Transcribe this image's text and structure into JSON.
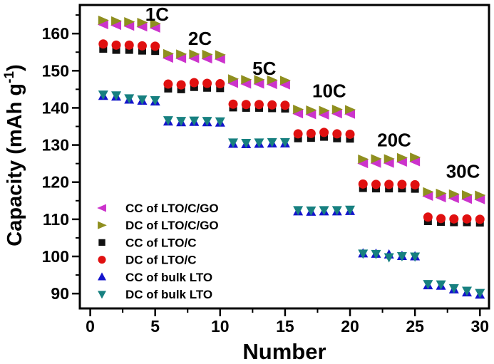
{
  "figure": {
    "background": "#ffffff",
    "axis_color": "#000000"
  },
  "chart_data": {
    "type": "scatter",
    "title": "",
    "xlabel": "Number",
    "ylabel_text": "Capacity (mAh g-1)",
    "ylabel_parts": {
      "prefix": "Capacity (mAh g",
      "superscript": "-1",
      "suffix": ")"
    },
    "xlim": [
      -0.8,
      30.7
    ],
    "ylim": [
      86,
      167.7
    ],
    "grid": false,
    "legend_position": "lower-left",
    "x_major_ticks": [
      0,
      5,
      10,
      15,
      20,
      25,
      30
    ],
    "x_minor_ticks": [
      2.5,
      7.5,
      12.5,
      17.5,
      22.5,
      27.5
    ],
    "y_major_ticks": [
      90,
      100,
      110,
      120,
      130,
      140,
      150,
      160
    ],
    "y_minor_ticks": [
      95,
      105,
      115,
      125,
      135,
      145,
      155,
      165
    ],
    "rate_annotations": [
      {
        "text": "1C",
        "x": 5.15,
        "y": 165.2
      },
      {
        "text": "2C",
        "x": 8.45,
        "y": 158.7
      },
      {
        "text": "5C",
        "x": 13.4,
        "y": 150.6
      },
      {
        "text": "10C",
        "x": 18.4,
        "y": 144.6
      },
      {
        "text": "20C",
        "x": 23.4,
        "y": 131.4
      },
      {
        "text": "30C",
        "x": 28.7,
        "y": 122.9
      }
    ],
    "x": [
      1,
      2,
      3,
      4,
      5,
      6,
      7,
      8,
      9,
      10,
      11,
      12,
      13,
      14,
      15,
      16,
      17,
      18,
      19,
      20,
      21,
      22,
      23,
      24,
      25,
      26,
      27,
      28,
      29,
      30
    ],
    "series": [
      {
        "name": "CC of LTO/C/GO",
        "marker": "triangle-left",
        "color": "#CC33CC",
        "values": [
          162.4,
          162.2,
          162.0,
          161.8,
          161.5,
          153.4,
          153.3,
          153.3,
          153.2,
          153.1,
          146.6,
          146.4,
          146.4,
          146.3,
          146.2,
          138.4,
          138.2,
          138.1,
          138.4,
          138.3,
          125.0,
          125.1,
          125.1,
          125.4,
          125.5,
          116.2,
          115.8,
          115.6,
          115.4,
          115.3
        ]
      },
      {
        "name": "DC of LTO/C/GO",
        "marker": "triangle-right",
        "color": "#8F8F1F",
        "values": [
          163.6,
          163.4,
          163.2,
          163.0,
          162.7,
          154.6,
          154.5,
          154.5,
          154.4,
          154.3,
          147.8,
          147.6,
          147.6,
          147.5,
          147.4,
          139.6,
          139.4,
          139.3,
          139.6,
          139.5,
          126.2,
          126.3,
          126.3,
          126.6,
          126.7,
          117.4,
          117.0,
          116.8,
          116.6,
          116.5
        ]
      },
      {
        "name": "CC of LTO/C",
        "marker": "square",
        "color": "#111111",
        "values": [
          155.9,
          155.6,
          155.6,
          155.4,
          155.3,
          145.2,
          145.0,
          145.6,
          145.4,
          145.3,
          140.1,
          140.0,
          140.0,
          139.9,
          139.8,
          131.8,
          131.9,
          132.2,
          131.8,
          131.7,
          118.4,
          118.3,
          118.3,
          118.3,
          118.2,
          109.5,
          109.3,
          109.2,
          109.2,
          109.1
        ]
      },
      {
        "name": "DC of LTO/C",
        "marker": "circle",
        "color": "#E01010",
        "values": [
          157.2,
          156.9,
          156.9,
          156.7,
          156.6,
          146.4,
          146.2,
          146.8,
          146.6,
          146.5,
          141.0,
          140.9,
          140.9,
          140.8,
          140.7,
          133.0,
          133.1,
          133.4,
          133.0,
          132.9,
          119.5,
          119.4,
          119.4,
          119.4,
          119.3,
          110.6,
          110.2,
          110.1,
          110.1,
          110.0
        ]
      },
      {
        "name": "CC of bulk LTO",
        "marker": "triangle-up",
        "color": "#1414CC",
        "values": [
          143.2,
          143.0,
          142.2,
          141.9,
          141.7,
          136.3,
          136.1,
          136.2,
          136.1,
          136.0,
          130.3,
          130.2,
          130.3,
          130.4,
          130.4,
          112.1,
          112.0,
          112.1,
          112.1,
          112.2,
          100.8,
          100.7,
          100.5,
          100.1,
          100.0,
          92.2,
          92.1,
          91.1,
          90.3,
          89.7
        ]
      },
      {
        "name": "DC of bulk LTO",
        "marker": "triangle-down",
        "color": "#178080",
        "values": [
          143.6,
          143.4,
          142.6,
          142.3,
          142.1,
          136.7,
          136.5,
          136.6,
          136.5,
          136.4,
          130.7,
          130.6,
          130.7,
          130.8,
          130.8,
          112.5,
          112.4,
          112.5,
          112.5,
          112.6,
          100.8,
          100.7,
          99.8,
          100.1,
          100.0,
          92.6,
          92.5,
          91.5,
          90.8,
          90.2
        ]
      }
    ],
    "draw_order": [
      2,
      3,
      0,
      1,
      4,
      5
    ]
  }
}
